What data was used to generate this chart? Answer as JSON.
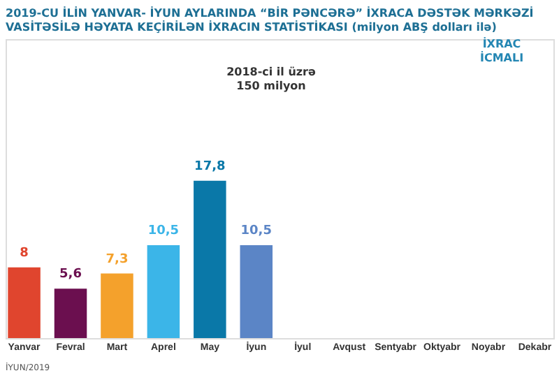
{
  "chart_data": {
    "type": "bar",
    "title": "2019-CU İLİN YANVAR- İYUN AYLARINDA “BİR PƏNCƏRƏ” İXRACA DƏSTƏK MƏRKƏZİ\nVASİTƏSİLƏ HƏYATA KEÇİRİLƏN İXRACIN STATİSTİKASI (milyon ABŞ dolları ilə)",
    "categories": [
      "Yanvar",
      "Fevral",
      "Mart",
      "Aprel",
      "May",
      "İyun",
      "İyul",
      "Avqust",
      "Sentyabr",
      "Oktyabr",
      "Noyabr",
      "Dekabr"
    ],
    "values": [
      8,
      5.6,
      7.3,
      10.5,
      17.8,
      10.5,
      null,
      null,
      null,
      null,
      null,
      null
    ],
    "colors": [
      "#e0452e",
      "#6b0f4f",
      "#f4a12c",
      "#3bb5e8",
      "#0a78a8",
      "#5b85c6",
      "#9b96c9",
      "#13a89a",
      "#3e9a85",
      "#a3b56d",
      "#9bd3a8",
      "#f5a04a"
    ],
    "value_labels": [
      "8",
      "5,6",
      "7,3",
      "10,5",
      "17,8",
      "10,5",
      null,
      null,
      null,
      null,
      null,
      null
    ],
    "annotations": [
      "2018-ci il üzrə\n150 milyon",
      "İXRAC\nİCMALI",
      "İYUN/2019"
    ],
    "grid": false
  }
}
